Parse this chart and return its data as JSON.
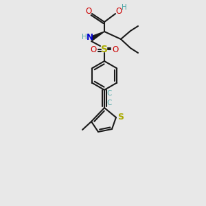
{
  "bg_color": "#e8e8e8",
  "bond_color": "#1a1a1a",
  "O_color": "#cc0000",
  "N_color": "#0000cc",
  "S_color": "#aaaa00",
  "H_color": "#4da6a6",
  "lw": 1.5,
  "figsize": [
    3.0,
    3.0
  ],
  "dpi": 100,
  "xlim": [
    0,
    300
  ],
  "ylim": [
    0,
    300
  ]
}
